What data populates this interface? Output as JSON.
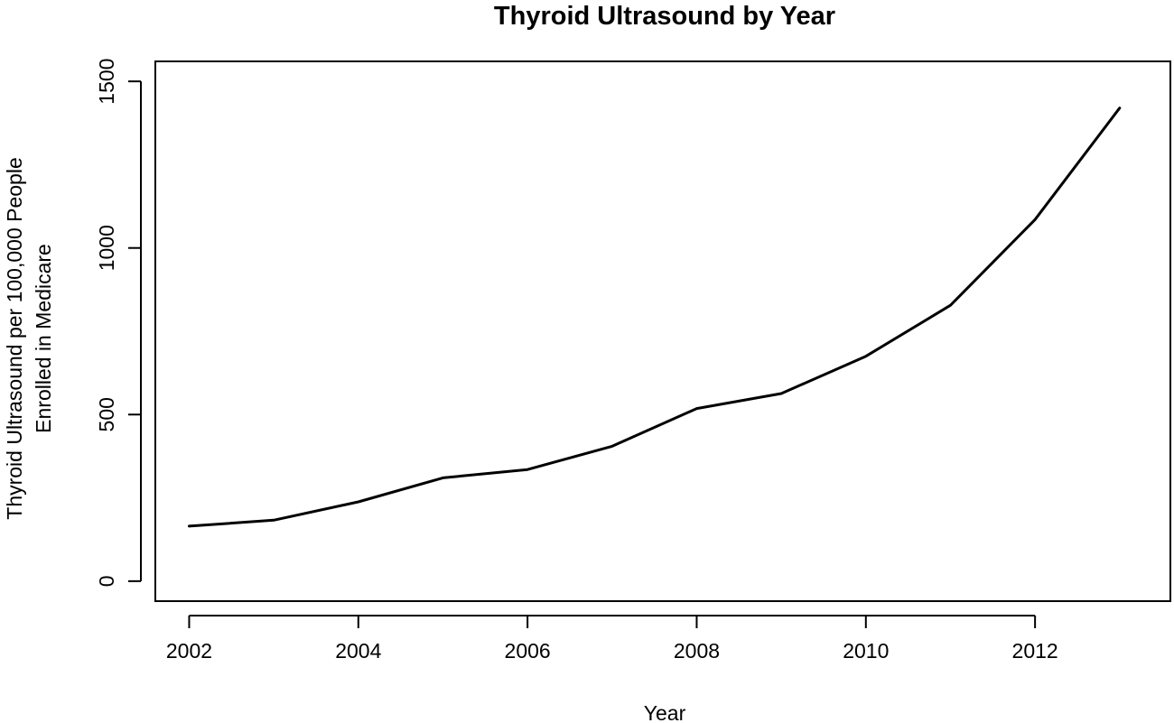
{
  "chart_data": {
    "type": "line",
    "title": "Thyroid Ultrasound by Year",
    "xlabel": "Year",
    "ylabel": [
      "Thyroid Ultrasound per 100,000 People",
      "Enrolled in Medicare"
    ],
    "x": [
      2002,
      2003,
      2004,
      2005,
      2006,
      2007,
      2008,
      2009,
      2010,
      2011,
      2012,
      2013
    ],
    "series": [
      {
        "values": [
          165,
          183,
          238,
          310,
          335,
          405,
          518,
          563,
          675,
          828,
          1085,
          1420
        ]
      }
    ],
    "xlim": [
      2001.6,
      2013.6
    ],
    "ylim": [
      -60,
      1560
    ],
    "x_ticks": [
      2002,
      2004,
      2006,
      2008,
      2010,
      2012
    ],
    "y_ticks": [
      0,
      500,
      1000,
      1500
    ],
    "x_tick_labels": [
      "2002",
      "2004",
      "2006",
      "2008",
      "2010",
      "2012"
    ],
    "y_tick_labels": [
      "0",
      "500",
      "1000",
      "1500"
    ],
    "grid": false,
    "legend": "none",
    "colors": {
      "line": "#000000",
      "background": "#ffffff"
    }
  }
}
